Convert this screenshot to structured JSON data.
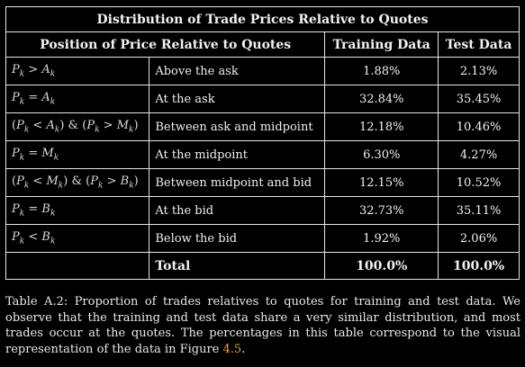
{
  "table": {
    "title": "Distribution of Trade Prices Relative to Quotes",
    "headers": {
      "position": "Position of Price Relative to Quotes",
      "training": "Training Data",
      "test": "Test Data"
    },
    "rows": [
      {
        "condition": "Pk > Ak",
        "description": "Above the ask",
        "training": "1.88%",
        "test": "2.13%"
      },
      {
        "condition": "Pk = Ak",
        "description": "At the ask",
        "training": "32.84%",
        "test": "35.45%"
      },
      {
        "condition": "(Pk < Ak) & (Pk > Mk)",
        "description": "Between ask and midpoint",
        "training": "12.18%",
        "test": "10.46%"
      },
      {
        "condition": "Pk = Mk",
        "description": "At the midpoint",
        "training": "6.30%",
        "test": "4.27%"
      },
      {
        "condition": "(Pk < Mk) & (Pk > Bk)",
        "description": "Between midpoint and bid",
        "training": "12.15%",
        "test": "10.52%"
      },
      {
        "condition": "Pk = Bk",
        "description": "At the bid",
        "training": "32.73%",
        "test": "35.11%"
      },
      {
        "condition": "Pk < Bk",
        "description": "Below the bid",
        "training": "1.92%",
        "test": "2.06%"
      }
    ],
    "total": {
      "label": "Total",
      "training": "100.0%",
      "test": "100.0%"
    }
  },
  "caption": {
    "text_before": "Table A.2: Proportion of trades relatives to quotes for training and test data. We observe that the training and test data share a very similar distribution, and most trades occur at the quotes. The percentages in this table correspond to the visual representation of the data in Figure ",
    "figure_ref": "4.5",
    "text_after": "."
  },
  "colors": {
    "background": "#000000",
    "text": "#ffffff",
    "figure_link": "#e5a53a"
  }
}
